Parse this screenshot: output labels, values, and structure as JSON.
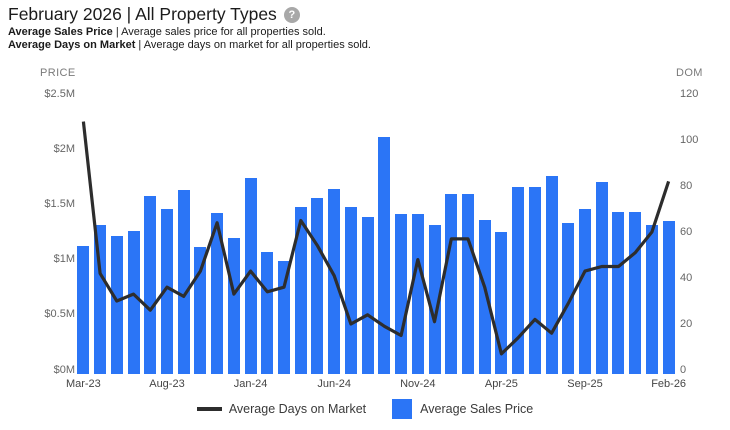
{
  "header": {
    "title": "February 2026 | All Property Types",
    "help_glyph": "?",
    "note1_term": "Average Sales Price",
    "note1_desc": " | Average sales price for all properties sold.",
    "note2_term": "Average Days on Market",
    "note2_desc": " | Average days on market for all properties sold."
  },
  "axes": {
    "left_title": "PRICE",
    "right_title": "DOM",
    "left_tick_labels": [
      "$2.5M",
      "$2M",
      "$1.5M",
      "$1M",
      "$0.5M",
      "$0M"
    ],
    "right_tick_labels": [
      "120",
      "100",
      "80",
      "60",
      "40",
      "20",
      "0"
    ],
    "x_tick_labels": [
      "Mar-23",
      "Aug-23",
      "Jan-24",
      "Jun-24",
      "Nov-24",
      "Apr-25",
      "Sep-25",
      "Feb-26"
    ]
  },
  "legend": {
    "line_label": "Average Days on Market",
    "bar_label": "Average Sales Price"
  },
  "colors": {
    "bar": "#2b75f6",
    "line": "#2d2d2d",
    "title": "#1b1b1b",
    "axis_title": "#7a7a7a",
    "tick": "#666666",
    "help_bg": "#a8a8a8"
  },
  "chart_data": {
    "type": "bar+line",
    "title": "February 2026 | All Property Types",
    "categories": [
      "Mar-23",
      "Apr-23",
      "May-23",
      "Jun-23",
      "Jul-23",
      "Aug-23",
      "Sep-23",
      "Oct-23",
      "Nov-23",
      "Dec-23",
      "Jan-24",
      "Feb-24",
      "Mar-24",
      "Apr-24",
      "May-24",
      "Jun-24",
      "Jul-24",
      "Aug-24",
      "Sep-24",
      "Oct-24",
      "Nov-24",
      "Dec-24",
      "Jan-25",
      "Feb-25",
      "Mar-25",
      "Apr-25",
      "May-25",
      "Jun-25",
      "Jul-25",
      "Aug-25",
      "Sep-25",
      "Oct-25",
      "Nov-25",
      "Dec-25",
      "Jan-26",
      "Feb-26"
    ],
    "series": [
      {
        "name": "Average Sales Price",
        "type": "bar",
        "axis": "left",
        "unit": "millions_usd",
        "values": [
          1.12,
          1.31,
          1.21,
          1.26,
          1.58,
          1.46,
          1.63,
          1.11,
          1.42,
          1.2,
          1.74,
          1.07,
          0.99,
          1.48,
          1.56,
          1.64,
          1.48,
          1.39,
          2.11,
          1.41,
          1.41,
          1.31,
          1.59,
          1.59,
          1.36,
          1.25,
          1.66,
          1.66,
          1.76,
          1.33,
          1.46,
          1.7,
          1.43,
          1.43,
          1.31,
          1.35
        ]
      },
      {
        "name": "Average Days on Market",
        "type": "line",
        "axis": "right",
        "unit": "days",
        "values": [
          108,
          42,
          30,
          33,
          26,
          36,
          32,
          43,
          64,
          33,
          43,
          34,
          36,
          65,
          54,
          41,
          20,
          24,
          19,
          15,
          48,
          21,
          57,
          57,
          36,
          7,
          14,
          22,
          16,
          29,
          43,
          45,
          45,
          51,
          60,
          82
        ]
      }
    ],
    "left_axis": {
      "title": "PRICE",
      "min": 0,
      "max": 2.5,
      "tick_step": 0.5
    },
    "right_axis": {
      "title": "DOM",
      "min": 0,
      "max": 120,
      "tick_step": 20
    },
    "x_axis": {
      "tick_every": 5,
      "first_label": "Mar-23",
      "last_label": "Feb-26"
    },
    "grid": false,
    "legend_position": "bottom"
  }
}
